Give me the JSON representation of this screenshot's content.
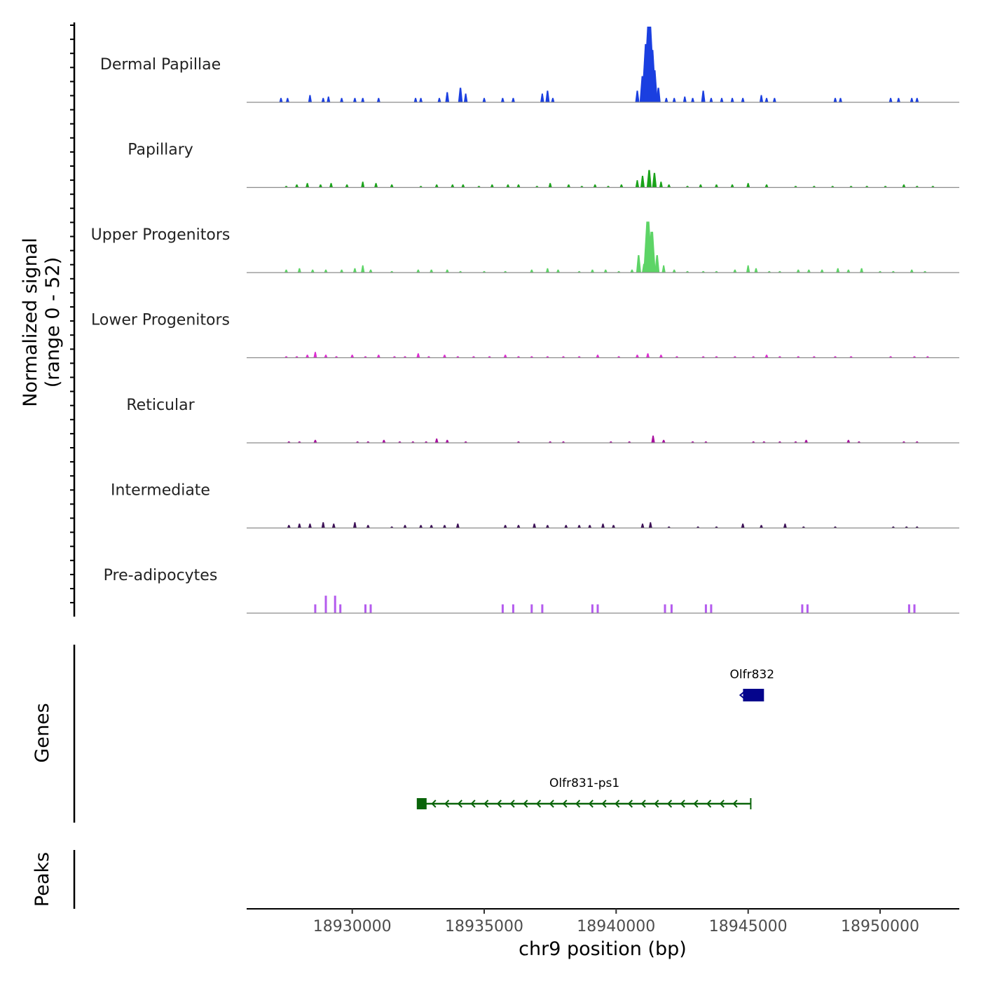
{
  "chart_data": {
    "type": "coverage",
    "chrom": "chr9",
    "xlim": [
      18926000,
      18953000
    ],
    "x_ticks": [
      18930000,
      18935000,
      18940000,
      18945000,
      18950000
    ],
    "x_tick_labels": [
      "18930000",
      "18935000",
      "18940000",
      "18945000",
      "18950000"
    ],
    "xlabel": "chr9 position (bp)",
    "ylabel_line1": "Normalized signal",
    "ylabel_line2": "(range 0 - 52)",
    "y_range": [
      0,
      52
    ],
    "genes_label": "Genes",
    "peaks_label": "Peaks",
    "peaks": [],
    "tracks": [
      {
        "name": "Dermal Papillae",
        "color": "#1a3fe0",
        "signal": [
          [
            18927300,
            3
          ],
          [
            18927550,
            3
          ],
          [
            18928400,
            5
          ],
          [
            18928900,
            3
          ],
          [
            18929100,
            4
          ],
          [
            18929600,
            3
          ],
          [
            18930100,
            3
          ],
          [
            18930400,
            3
          ],
          [
            18931000,
            3
          ],
          [
            18932400,
            3
          ],
          [
            18932600,
            3
          ],
          [
            18933300,
            3
          ],
          [
            18933600,
            7
          ],
          [
            18934100,
            10
          ],
          [
            18934300,
            6
          ],
          [
            18935000,
            3
          ],
          [
            18935700,
            3
          ],
          [
            18936100,
            3
          ],
          [
            18937200,
            6
          ],
          [
            18937400,
            8
          ],
          [
            18937600,
            3
          ],
          [
            18940800,
            8
          ],
          [
            18941000,
            18
          ],
          [
            18941150,
            40
          ],
          [
            18941250,
            52
          ],
          [
            18941350,
            36
          ],
          [
            18941450,
            22
          ],
          [
            18941600,
            10
          ],
          [
            18941900,
            3
          ],
          [
            18942200,
            3
          ],
          [
            18942600,
            4
          ],
          [
            18942900,
            3
          ],
          [
            18943300,
            8
          ],
          [
            18943600,
            3
          ],
          [
            18944000,
            3
          ],
          [
            18944400,
            3
          ],
          [
            18944800,
            3
          ],
          [
            18945500,
            5
          ],
          [
            18945700,
            3
          ],
          [
            18946000,
            3
          ],
          [
            18948300,
            3
          ],
          [
            18948500,
            3
          ],
          [
            18950400,
            3
          ],
          [
            18950700,
            3
          ],
          [
            18951200,
            3
          ],
          [
            18951400,
            3
          ]
        ]
      },
      {
        "name": "Papillary",
        "color": "#1aa31a",
        "signal": [
          [
            18927500,
            1
          ],
          [
            18927900,
            2
          ],
          [
            18928300,
            3
          ],
          [
            18928800,
            2
          ],
          [
            18929200,
            3
          ],
          [
            18929800,
            2
          ],
          [
            18930400,
            4
          ],
          [
            18930900,
            3
          ],
          [
            18931500,
            2
          ],
          [
            18932600,
            1
          ],
          [
            18933200,
            2
          ],
          [
            18933800,
            2
          ],
          [
            18934200,
            2
          ],
          [
            18934800,
            1
          ],
          [
            18935300,
            2
          ],
          [
            18935900,
            2
          ],
          [
            18936300,
            2
          ],
          [
            18937000,
            1
          ],
          [
            18937500,
            3
          ],
          [
            18938200,
            2
          ],
          [
            18938700,
            1
          ],
          [
            18939200,
            2
          ],
          [
            18939700,
            1
          ],
          [
            18940200,
            2
          ],
          [
            18940800,
            5
          ],
          [
            18941000,
            8
          ],
          [
            18941250,
            12
          ],
          [
            18941450,
            10
          ],
          [
            18941700,
            4
          ],
          [
            18942000,
            2
          ],
          [
            18942700,
            1
          ],
          [
            18943200,
            2
          ],
          [
            18943800,
            2
          ],
          [
            18944400,
            2
          ],
          [
            18945000,
            3
          ],
          [
            18945700,
            2
          ],
          [
            18946800,
            1
          ],
          [
            18947500,
            1
          ],
          [
            18948200,
            1
          ],
          [
            18948900,
            1
          ],
          [
            18949500,
            1
          ],
          [
            18950200,
            1
          ],
          [
            18950900,
            2
          ],
          [
            18951400,
            1
          ],
          [
            18952000,
            1
          ]
        ]
      },
      {
        "name": "Upper Progenitors",
        "color": "#5dd466",
        "signal": [
          [
            18927500,
            2
          ],
          [
            18928000,
            3
          ],
          [
            18928500,
            2
          ],
          [
            18929000,
            2
          ],
          [
            18929600,
            2
          ],
          [
            18930100,
            3
          ],
          [
            18930400,
            5
          ],
          [
            18930700,
            2
          ],
          [
            18931500,
            1
          ],
          [
            18932500,
            2
          ],
          [
            18933000,
            2
          ],
          [
            18933600,
            2
          ],
          [
            18934100,
            1
          ],
          [
            18935000,
            1
          ],
          [
            18935800,
            1
          ],
          [
            18936800,
            2
          ],
          [
            18937400,
            3
          ],
          [
            18937800,
            2
          ],
          [
            18938600,
            1
          ],
          [
            18939100,
            2
          ],
          [
            18939600,
            2
          ],
          [
            18940100,
            1
          ],
          [
            18940600,
            2
          ],
          [
            18940850,
            12
          ],
          [
            18941050,
            6
          ],
          [
            18941200,
            35
          ],
          [
            18941350,
            28
          ],
          [
            18941550,
            12
          ],
          [
            18941800,
            5
          ],
          [
            18942200,
            2
          ],
          [
            18942700,
            1
          ],
          [
            18943300,
            1
          ],
          [
            18943800,
            1
          ],
          [
            18944500,
            2
          ],
          [
            18945000,
            5
          ],
          [
            18945300,
            3
          ],
          [
            18945800,
            1
          ],
          [
            18946200,
            1
          ],
          [
            18946900,
            2
          ],
          [
            18947300,
            2
          ],
          [
            18947800,
            2
          ],
          [
            18948400,
            3
          ],
          [
            18948800,
            2
          ],
          [
            18949300,
            3
          ],
          [
            18950000,
            1
          ],
          [
            18950500,
            1
          ],
          [
            18951200,
            2
          ],
          [
            18951700,
            1
          ]
        ]
      },
      {
        "name": "Lower Progenitors",
        "color": "#dc2cd1",
        "signal": [
          [
            18927500,
            1
          ],
          [
            18927900,
            1
          ],
          [
            18928300,
            2
          ],
          [
            18928600,
            4
          ],
          [
            18929000,
            2
          ],
          [
            18929400,
            1
          ],
          [
            18930000,
            2
          ],
          [
            18930500,
            1
          ],
          [
            18931000,
            2
          ],
          [
            18931600,
            1
          ],
          [
            18932000,
            1
          ],
          [
            18932500,
            3
          ],
          [
            18932900,
            1
          ],
          [
            18933500,
            2
          ],
          [
            18934000,
            1
          ],
          [
            18934600,
            1
          ],
          [
            18935200,
            1
          ],
          [
            18935800,
            2
          ],
          [
            18936300,
            1
          ],
          [
            18936800,
            1
          ],
          [
            18937400,
            1
          ],
          [
            18938000,
            1
          ],
          [
            18938600,
            1
          ],
          [
            18939300,
            2
          ],
          [
            18940100,
            1
          ],
          [
            18940800,
            2
          ],
          [
            18941200,
            3
          ],
          [
            18941700,
            2
          ],
          [
            18942300,
            1
          ],
          [
            18943300,
            1
          ],
          [
            18943800,
            1
          ],
          [
            18944500,
            1
          ],
          [
            18945200,
            1
          ],
          [
            18945700,
            2
          ],
          [
            18946200,
            1
          ],
          [
            18946900,
            1
          ],
          [
            18947500,
            1
          ],
          [
            18948300,
            1
          ],
          [
            18948900,
            1
          ],
          [
            18950400,
            1
          ],
          [
            18951300,
            1
          ],
          [
            18951800,
            1
          ]
        ]
      },
      {
        "name": "Reticular",
        "color": "#a8109f",
        "signal": [
          [
            18927600,
            1
          ],
          [
            18928000,
            1
          ],
          [
            18928600,
            2
          ],
          [
            18930200,
            1
          ],
          [
            18930600,
            1
          ],
          [
            18931200,
            2
          ],
          [
            18931800,
            1
          ],
          [
            18932300,
            1
          ],
          [
            18932800,
            1
          ],
          [
            18933200,
            3
          ],
          [
            18933600,
            2
          ],
          [
            18934300,
            1
          ],
          [
            18936300,
            1
          ],
          [
            18937500,
            1
          ],
          [
            18938000,
            1
          ],
          [
            18939800,
            1
          ],
          [
            18940500,
            1
          ],
          [
            18941400,
            5
          ],
          [
            18941800,
            2
          ],
          [
            18942900,
            1
          ],
          [
            18943400,
            1
          ],
          [
            18945200,
            1
          ],
          [
            18945600,
            1
          ],
          [
            18946200,
            1
          ],
          [
            18946800,
            1
          ],
          [
            18947200,
            2
          ],
          [
            18948800,
            2
          ],
          [
            18949200,
            1
          ],
          [
            18950900,
            1
          ],
          [
            18951400,
            1
          ]
        ]
      },
      {
        "name": "Intermediate",
        "color": "#3d1157",
        "signal": [
          [
            18927600,
            2
          ],
          [
            18928000,
            3
          ],
          [
            18928400,
            3
          ],
          [
            18928900,
            4
          ],
          [
            18929300,
            3
          ],
          [
            18930100,
            4
          ],
          [
            18930600,
            2
          ],
          [
            18931500,
            1
          ],
          [
            18932000,
            2
          ],
          [
            18932600,
            2
          ],
          [
            18933000,
            2
          ],
          [
            18933500,
            2
          ],
          [
            18934000,
            3
          ],
          [
            18935800,
            2
          ],
          [
            18936300,
            2
          ],
          [
            18936900,
            3
          ],
          [
            18937400,
            2
          ],
          [
            18938100,
            2
          ],
          [
            18938600,
            2
          ],
          [
            18939000,
            2
          ],
          [
            18939500,
            3
          ],
          [
            18939900,
            2
          ],
          [
            18941000,
            3
          ],
          [
            18941300,
            4
          ],
          [
            18942000,
            1
          ],
          [
            18943100,
            1
          ],
          [
            18943800,
            1
          ],
          [
            18944800,
            3
          ],
          [
            18945500,
            2
          ],
          [
            18946400,
            3
          ],
          [
            18947100,
            1
          ],
          [
            18948300,
            1
          ],
          [
            18950500,
            1
          ],
          [
            18951000,
            1
          ],
          [
            18951400,
            1
          ]
        ]
      },
      {
        "name": "Pre-adipocytes",
        "color": "#b45bee",
        "signal": [
          [
            18928600,
            6
          ],
          [
            18929000,
            12
          ],
          [
            18929350,
            12
          ],
          [
            18929550,
            6
          ],
          [
            18930500,
            6
          ],
          [
            18930700,
            6
          ],
          [
            18935700,
            6
          ],
          [
            18936100,
            6
          ],
          [
            18936800,
            6
          ],
          [
            18937200,
            6
          ],
          [
            18939100,
            6
          ],
          [
            18939300,
            6
          ],
          [
            18941850,
            6
          ],
          [
            18942100,
            6
          ],
          [
            18943400,
            6
          ],
          [
            18943600,
            6
          ],
          [
            18947050,
            6
          ],
          [
            18947250,
            6
          ],
          [
            18951100,
            6
          ],
          [
            18951300,
            6
          ]
        ]
      }
    ],
    "genes": [
      {
        "name": "Olfr832",
        "start": 18944700,
        "end": 18945600,
        "strand": "-",
        "color": "#05058c",
        "row": 1
      },
      {
        "name": "Olfr831-ps1",
        "start": 18932500,
        "end": 18945100,
        "strand": "-",
        "color": "#0a640a",
        "row": 2
      }
    ]
  }
}
